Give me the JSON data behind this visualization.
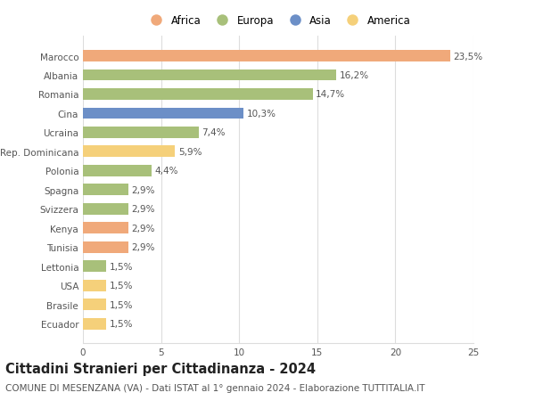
{
  "categories": [
    "Marocco",
    "Albania",
    "Romania",
    "Cina",
    "Ucraina",
    "Rep. Dominicana",
    "Polonia",
    "Spagna",
    "Svizzera",
    "Kenya",
    "Tunisia",
    "Lettonia",
    "USA",
    "Brasile",
    "Ecuador"
  ],
  "values": [
    23.5,
    16.2,
    14.7,
    10.3,
    7.4,
    5.9,
    4.4,
    2.9,
    2.9,
    2.9,
    2.9,
    1.5,
    1.5,
    1.5,
    1.5
  ],
  "labels": [
    "23,5%",
    "16,2%",
    "14,7%",
    "10,3%",
    "7,4%",
    "5,9%",
    "4,4%",
    "2,9%",
    "2,9%",
    "2,9%",
    "2,9%",
    "1,5%",
    "1,5%",
    "1,5%",
    "1,5%"
  ],
  "colors": [
    "#F0A97A",
    "#A8C07A",
    "#A8C07A",
    "#6C8FC7",
    "#A8C07A",
    "#F5D07A",
    "#A8C07A",
    "#A8C07A",
    "#A8C07A",
    "#F0A97A",
    "#F0A97A",
    "#A8C07A",
    "#F5D07A",
    "#F5D07A",
    "#F5D07A"
  ],
  "legend_labels": [
    "Africa",
    "Europa",
    "Asia",
    "America"
  ],
  "legend_colors": [
    "#F0A97A",
    "#A8C07A",
    "#6C8FC7",
    "#F5D07A"
  ],
  "xlim": [
    0,
    25
  ],
  "xticks": [
    0,
    5,
    10,
    15,
    20,
    25
  ],
  "title": "Cittadini Stranieri per Cittadinanza - 2024",
  "subtitle": "COMUNE DI MESENZANA (VA) - Dati ISTAT al 1° gennaio 2024 - Elaborazione TUTTITALIA.IT",
  "background_color": "#ffffff",
  "grid_color": "#dddddd",
  "bar_height": 0.6,
  "title_fontsize": 10.5,
  "subtitle_fontsize": 7.5,
  "label_fontsize": 7.5,
  "tick_fontsize": 7.5,
  "legend_fontsize": 8.5
}
